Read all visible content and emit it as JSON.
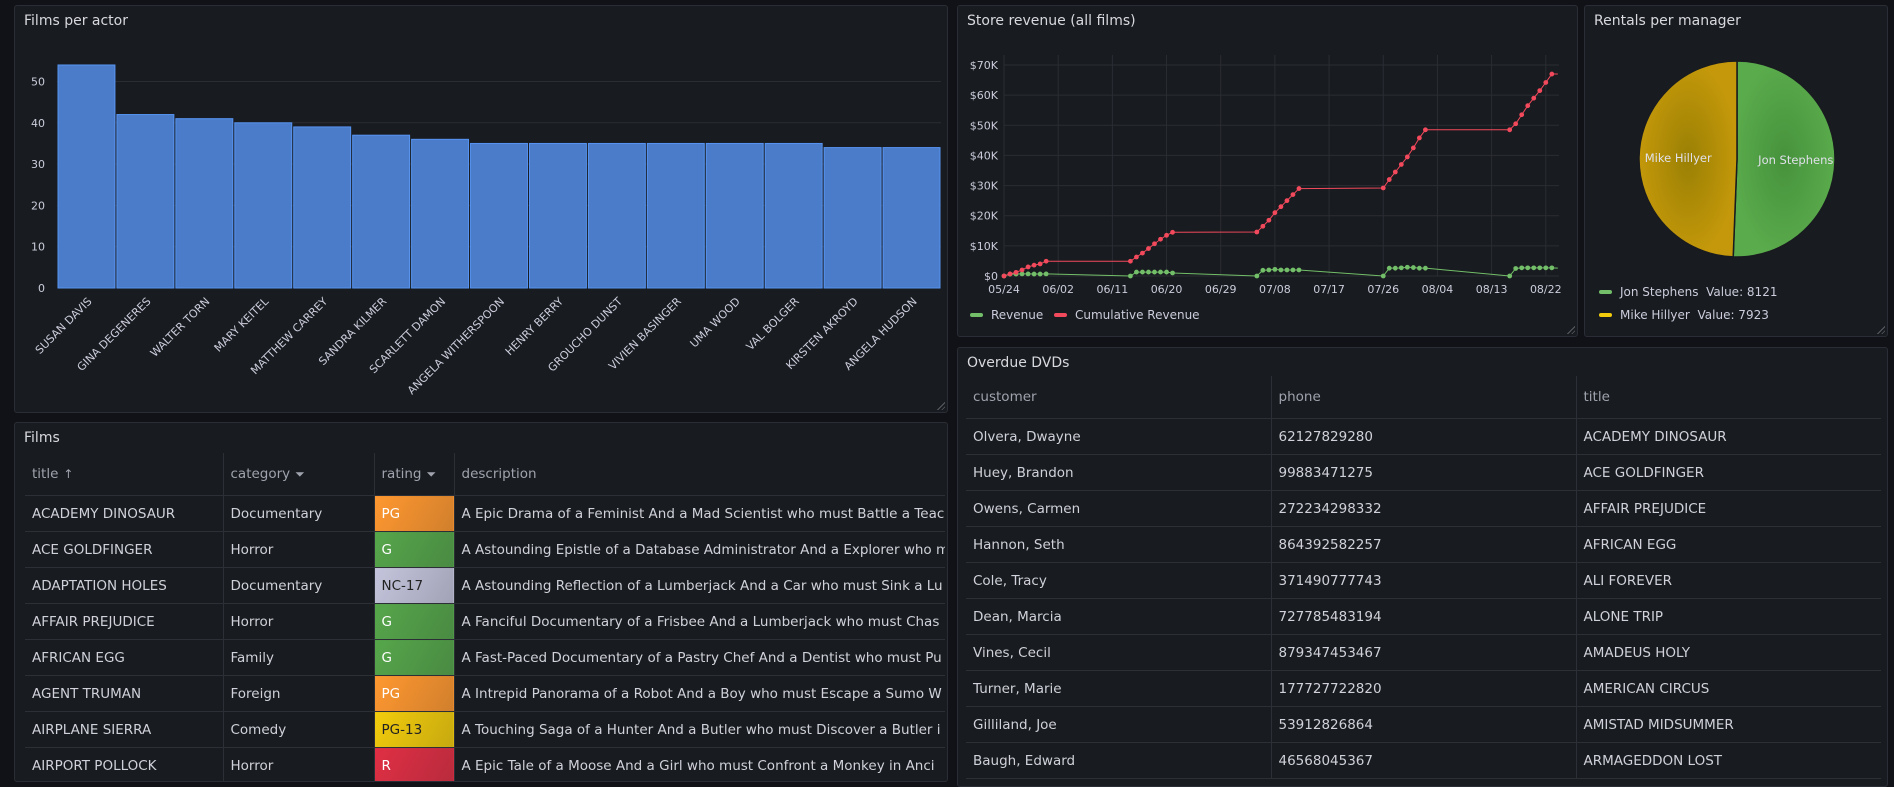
{
  "colors": {
    "background": "#111217",
    "panel": "#181b1f",
    "bar": "#5794f2",
    "revenue": "#73bf69",
    "cumulative": "#f2495c",
    "jon": "#56a64b",
    "mike": "#c79a05",
    "mike_legend": "#f2cc0c"
  },
  "films_per_actor": {
    "title": "Films per actor",
    "chart_data": {
      "type": "bar",
      "categories": [
        "SUSAN DAVIS",
        "GINA DEGENERES",
        "WALTER TORN",
        "MARY KEITEL",
        "MATTHEW CARREY",
        "SANDRA KILMER",
        "SCARLETT DAMON",
        "ANGELA WITHERSPOON",
        "HENRY BERRY",
        "GROUCHO DUNST",
        "VIVIEN BASINGER",
        "UMA WOOD",
        "VAL BOLGER",
        "KIRSTEN AKROYD",
        "ANGELA HUDSON"
      ],
      "values": [
        54,
        42,
        41,
        40,
        39,
        37,
        36,
        35,
        35,
        35,
        35,
        35,
        35,
        34,
        34
      ],
      "yticks": [
        "0",
        "10",
        "20",
        "30",
        "40",
        "50"
      ],
      "ylim": [
        0,
        57
      ],
      "grid": true
    }
  },
  "store_revenue": {
    "title": "Store revenue (all films)",
    "chart_data": {
      "type": "line",
      "xticks": [
        "05/24",
        "06/02",
        "06/11",
        "06/20",
        "06/29",
        "07/08",
        "07/17",
        "07/26",
        "08/04",
        "08/13",
        "08/22"
      ],
      "yticks": [
        "$0",
        "$10K",
        "$20K",
        "$30K",
        "$40K",
        "$50K",
        "$60K",
        "$70K"
      ],
      "ylim": [
        0,
        70000
      ],
      "grid": true,
      "legend": "bottom",
      "series": [
        {
          "name": "Revenue",
          "points": [
            [
              "05/24",
              0
            ],
            [
              "05/25",
              600
            ],
            [
              "05/26",
              650
            ],
            [
              "05/27",
              700
            ],
            [
              "05/28",
              700
            ],
            [
              "05/29",
              650
            ],
            [
              "05/30",
              650
            ],
            [
              "05/31",
              700
            ],
            [
              "06/14",
              0
            ],
            [
              "06/15",
              1300
            ],
            [
              "06/16",
              1300
            ],
            [
              "06/17",
              1300
            ],
            [
              "06/18",
              1300
            ],
            [
              "06/19",
              1300
            ],
            [
              "06/20",
              1300
            ],
            [
              "06/21",
              1000
            ],
            [
              "07/05",
              0
            ],
            [
              "07/06",
              1900
            ],
            [
              "07/07",
              2000
            ],
            [
              "07/08",
              2200
            ],
            [
              "07/09",
              2000
            ],
            [
              "07/10",
              2000
            ],
            [
              "07/11",
              2000
            ],
            [
              "07/12",
              2000
            ],
            [
              "07/26",
              0
            ],
            [
              "07/27",
              2600
            ],
            [
              "07/28",
              2600
            ],
            [
              "07/29",
              2700
            ],
            [
              "07/30",
              2900
            ],
            [
              "07/31",
              2800
            ],
            [
              "08/01",
              2600
            ],
            [
              "08/02",
              2600
            ],
            [
              "08/16",
              0
            ],
            [
              "08/17",
              2500
            ],
            [
              "08/18",
              2700
            ],
            [
              "08/19",
              2700
            ],
            [
              "08/20",
              2700
            ],
            [
              "08/21",
              2700
            ],
            [
              "08/22",
              2700
            ],
            [
              "08/23",
              2700
            ],
            [
              "08/24",
              2600
            ]
          ]
        },
        {
          "name": "Cumulative Revenue",
          "points": [
            [
              "05/24",
              0
            ],
            [
              "05/25",
              700
            ],
            [
              "05/26",
              1200
            ],
            [
              "05/27",
              2000
            ],
            [
              "05/28",
              3000
            ],
            [
              "05/29",
              3600
            ],
            [
              "05/30",
              4000
            ],
            [
              "05/31",
              4900
            ],
            [
              "06/14",
              4900
            ],
            [
              "06/15",
              6300
            ],
            [
              "06/16",
              7600
            ],
            [
              "06/17",
              9100
            ],
            [
              "06/18",
              10700
            ],
            [
              "06/19",
              12200
            ],
            [
              "06/20",
              13500
            ],
            [
              "06/21",
              14500
            ],
            [
              "07/05",
              14600
            ],
            [
              "07/06",
              16500
            ],
            [
              "07/07",
              18500
            ],
            [
              "07/08",
              21000
            ],
            [
              "07/09",
              23000
            ],
            [
              "07/10",
              25000
            ],
            [
              "07/11",
              27000
            ],
            [
              "07/12",
              29000
            ],
            [
              "07/26",
              29200
            ],
            [
              "07/27",
              32000
            ],
            [
              "07/28",
              34500
            ],
            [
              "07/29",
              37000
            ],
            [
              "07/30",
              39500
            ],
            [
              "07/31",
              42500
            ],
            [
              "08/01",
              45800
            ],
            [
              "08/02",
              48500
            ],
            [
              "08/16",
              48500
            ],
            [
              "08/17",
              50500
            ],
            [
              "08/18",
              53500
            ],
            [
              "08/19",
              56500
            ],
            [
              "08/20",
              59000
            ],
            [
              "08/21",
              61500
            ],
            [
              "08/22",
              64200
            ],
            [
              "08/23",
              67000
            ],
            [
              "08/24",
              67000
            ]
          ]
        }
      ]
    }
  },
  "rentals_per_manager": {
    "title": "Rentals per manager",
    "chart_data": {
      "type": "pie",
      "slices": [
        {
          "name": "Jon Stephens",
          "value": 8121
        },
        {
          "name": "Mike Hillyer",
          "value": 7923
        }
      ],
      "legend_values": [
        "Value: 8121",
        "Value: 7923"
      ],
      "legend": "bottom"
    }
  },
  "films": {
    "title": "Films",
    "columns": [
      {
        "label": "title",
        "icon": "↑"
      },
      {
        "label": "category",
        "icon": "filter"
      },
      {
        "label": "rating",
        "icon": "filter"
      },
      {
        "label": "description"
      }
    ],
    "rows": [
      [
        "ACADEMY DINOSAUR",
        "Documentary",
        "PG",
        "A Epic Drama of a Feminist And a Mad Scientist who must Battle a Teac"
      ],
      [
        "ACE GOLDFINGER",
        "Horror",
        "G",
        "A Astounding Epistle of a Database Administrator And a Explorer who m"
      ],
      [
        "ADAPTATION HOLES",
        "Documentary",
        "NC-17",
        "A Astounding Reflection of a Lumberjack And a Car who must Sink a Lu"
      ],
      [
        "AFFAIR PREJUDICE",
        "Horror",
        "G",
        "A Fanciful Documentary of a Frisbee And a Lumberjack who must Chas"
      ],
      [
        "AFRICAN EGG",
        "Family",
        "G",
        "A Fast-Paced Documentary of a Pastry Chef And a Dentist who must Pu"
      ],
      [
        "AGENT TRUMAN",
        "Foreign",
        "PG",
        "A Intrepid Panorama of a Robot And a Boy who must Escape a Sumo W"
      ],
      [
        "AIRPLANE SIERRA",
        "Comedy",
        "PG-13",
        "A Touching Saga of a Hunter And a Butler who must Discover a Butler i"
      ],
      [
        "AIRPORT POLLOCK",
        "Horror",
        "R",
        "A Epic Tale of a Moose And a Girl who must Confront a Monkey in Anci"
      ]
    ],
    "rating_colors": {
      "PG": "#ff9830",
      "G": "#56a64b",
      "NC-17": "#c4c4dc",
      "PG-13": "#f2cc0c",
      "R": "#e02f44"
    }
  },
  "overdue": {
    "title": "Overdue DVDs",
    "columns": [
      "customer",
      "phone",
      "title"
    ],
    "rows": [
      [
        "Olvera, Dwayne",
        "62127829280",
        "ACADEMY DINOSAUR"
      ],
      [
        "Huey, Brandon",
        "99883471275",
        "ACE GOLDFINGER"
      ],
      [
        "Owens, Carmen",
        "272234298332",
        "AFFAIR PREJUDICE"
      ],
      [
        "Hannon, Seth",
        "864392582257",
        "AFRICAN EGG"
      ],
      [
        "Cole, Tracy",
        "371490777743",
        "ALI FOREVER"
      ],
      [
        "Dean, Marcia",
        "727785483194",
        "ALONE TRIP"
      ],
      [
        "Vines, Cecil",
        "879347453467",
        "AMADEUS HOLY"
      ],
      [
        "Turner, Marie",
        "177727722820",
        "AMERICAN CIRCUS"
      ],
      [
        "Gilliland, Joe",
        "53912826864",
        "AMISTAD MIDSUMMER"
      ],
      [
        "Baugh, Edward",
        "46568045367",
        "ARMAGEDDON LOST"
      ]
    ]
  }
}
